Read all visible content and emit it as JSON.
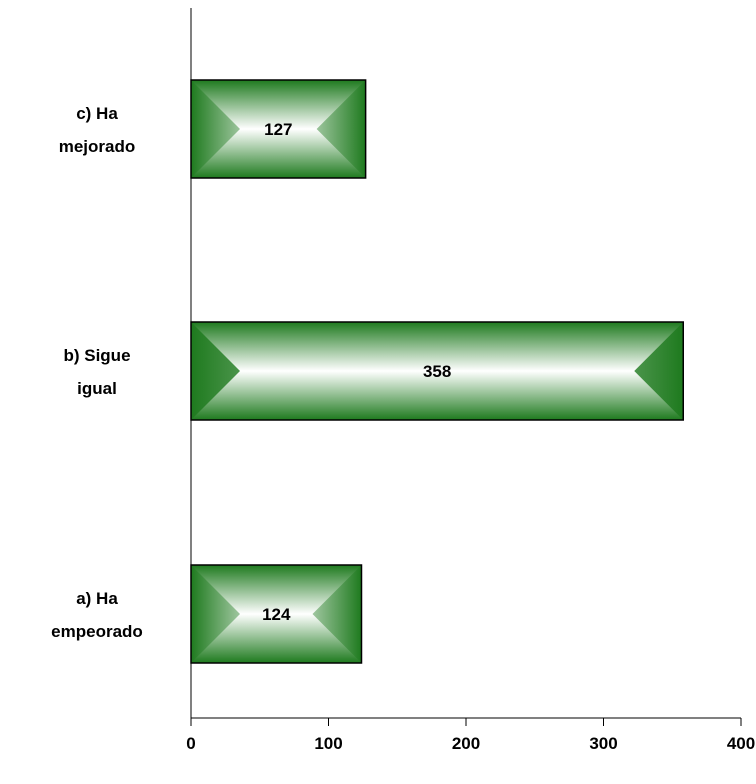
{
  "chart_data": {
    "type": "bar",
    "orientation": "horizontal",
    "categories": [
      [
        "c) Ha",
        "mejorado"
      ],
      [
        "b) Sigue",
        "igual"
      ],
      [
        "a) Ha",
        "empeorado"
      ]
    ],
    "values": [
      127,
      358,
      124
    ],
    "xlim": [
      0,
      400
    ],
    "xticks": [
      "0",
      "100",
      "200",
      "300",
      "400"
    ],
    "grid": false,
    "legend": "none",
    "colors": {
      "bar_edge": "#1e7a1e",
      "bar_center": "#ffffff",
      "outline": "#000000"
    }
  }
}
